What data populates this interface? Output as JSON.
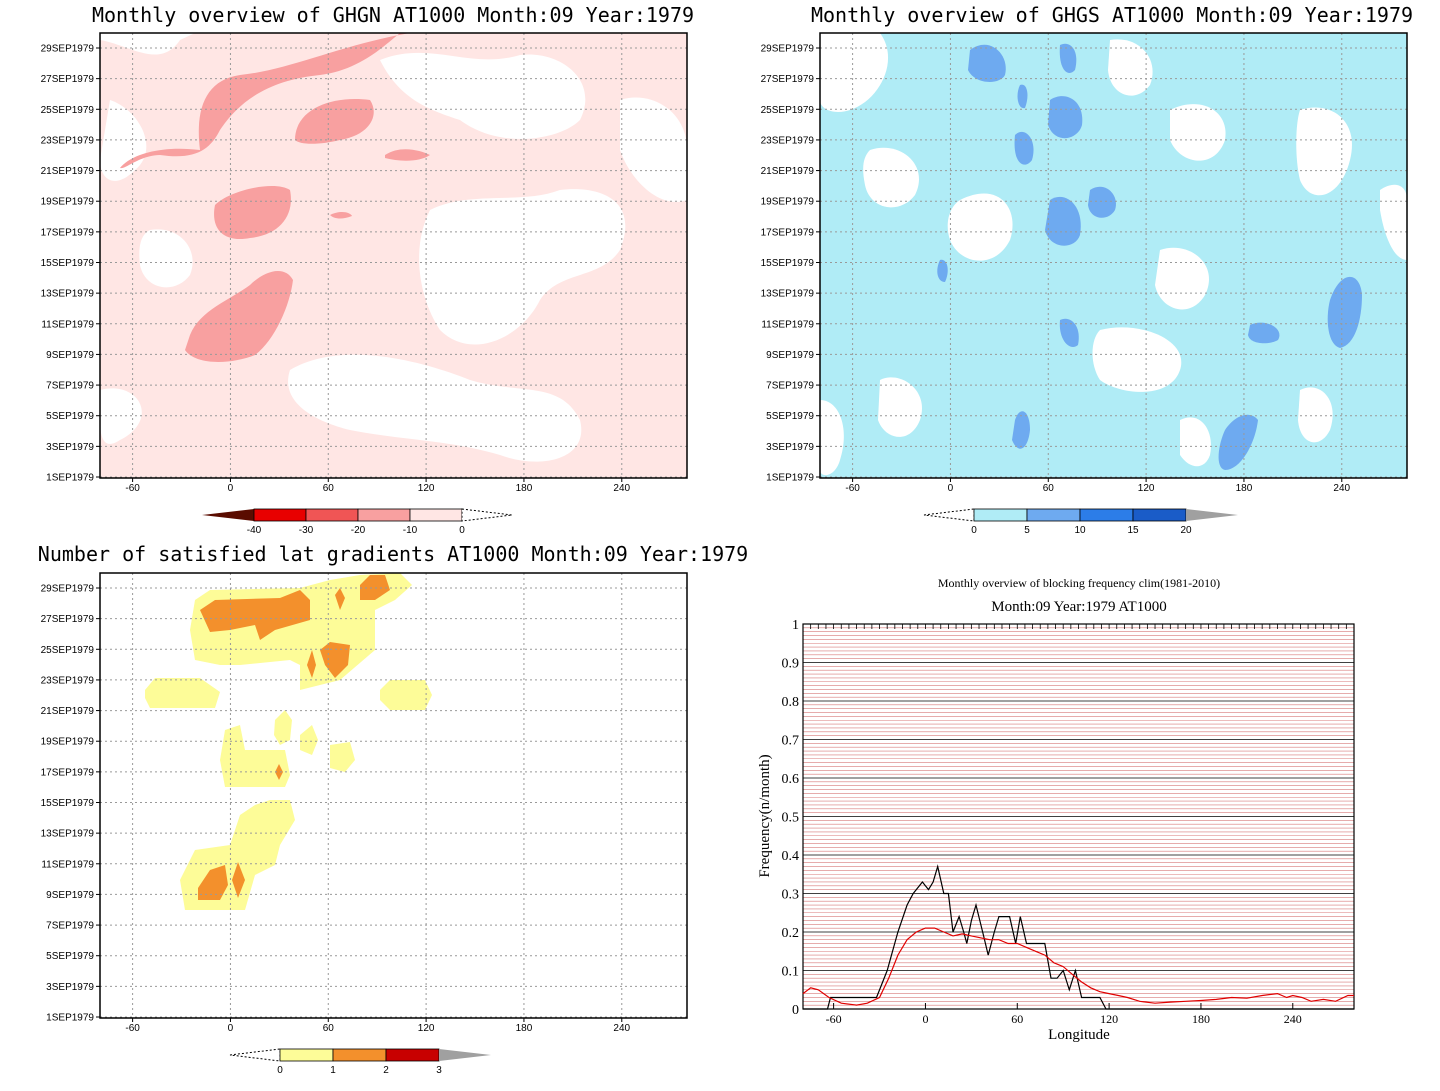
{
  "panels": [
    {
      "id": "ghgn",
      "title": "Monthly overview of GHGN AT1000 Month:09 Year:1979",
      "chart_data": {
        "type": "heatmap",
        "x_ticks": [
          -60,
          0,
          60,
          120,
          180,
          240
        ],
        "y_ticks": [
          "1SEP1979",
          "3SEP1979",
          "5SEP1979",
          "7SEP1979",
          "9SEP1979",
          "11SEP1979",
          "13SEP1979",
          "15SEP1979",
          "17SEP1979",
          "19SEP1979",
          "21SEP1979",
          "23SEP1979",
          "25SEP1979",
          "27SEP1979",
          "29SEP1979"
        ],
        "xlim": [
          -80,
          280
        ],
        "grid": true,
        "colorbar": {
          "labels": [
            "-40",
            "-30",
            "-20",
            "-10",
            "0"
          ],
          "colors": [
            "#5a0c00",
            "#e80000",
            "#f05555",
            "#f8a0a0",
            "#ffe6e4",
            "#ffffff"
          ]
        }
      }
    },
    {
      "id": "ghgs",
      "title": "Monthly overview of GHGS AT1000 Month:09 Year:1979",
      "chart_data": {
        "type": "heatmap",
        "x_ticks": [
          -60,
          0,
          60,
          120,
          180,
          240
        ],
        "y_ticks": [
          "1SEP1979",
          "3SEP1979",
          "5SEP1979",
          "7SEP1979",
          "9SEP1979",
          "11SEP1979",
          "13SEP1979",
          "15SEP1979",
          "17SEP1979",
          "19SEP1979",
          "21SEP1979",
          "23SEP1979",
          "25SEP1979",
          "27SEP1979",
          "29SEP1979"
        ],
        "xlim": [
          -80,
          280
        ],
        "grid": true,
        "colorbar": {
          "labels": [
            "0",
            "5",
            "10",
            "15",
            "20"
          ],
          "colors": [
            "#ffffff",
            "#b0ecf6",
            "#6eaaf0",
            "#2c7de8",
            "#1a5cc8",
            "#a0a0a0"
          ]
        }
      }
    },
    {
      "id": "nsat",
      "title": "Number of satisfied lat gradients AT1000 Month:09 Year:1979",
      "chart_data": {
        "type": "heatmap",
        "x_ticks": [
          -60,
          0,
          60,
          120,
          180,
          240
        ],
        "y_ticks": [
          "1SEP1979",
          "3SEP1979",
          "5SEP1979",
          "7SEP1979",
          "9SEP1979",
          "11SEP1979",
          "13SEP1979",
          "15SEP1979",
          "17SEP1979",
          "19SEP1979",
          "21SEP1979",
          "23SEP1979",
          "25SEP1979",
          "27SEP1979",
          "29SEP1979"
        ],
        "xlim": [
          -80,
          280
        ],
        "grid": true,
        "colorbar": {
          "labels": [
            "0",
            "1",
            "2",
            "3"
          ],
          "colors": [
            "#ffffff",
            "#fdfc98",
            "#f3902c",
            "#c80000",
            "#a0a0a0"
          ]
        }
      }
    }
  ],
  "line_chart": {
    "title_line1": "Monthly overview of blocking frequency clim(1981-2010)",
    "title_line2": "Month:09 Year:1979  AT1000",
    "chart_data": {
      "type": "line",
      "xlabel": "Longitude",
      "ylabel": "Frequency(n/month)",
      "xlim": [
        -80,
        280
      ],
      "ylim": [
        0,
        1
      ],
      "x_ticks": [
        -60,
        0,
        60,
        120,
        180,
        240
      ],
      "y_ticks": [
        "0",
        "0.1",
        "0.2",
        "0.3",
        "0.4",
        "0.5",
        "0.6",
        "0.7",
        "0.8",
        "0.9",
        "1"
      ],
      "series": [
        {
          "color": "#000000",
          "points": [
            [
              -80,
              0
            ],
            [
              -64,
              0
            ],
            [
              -62,
              0.03
            ],
            [
              -55,
              0.03
            ],
            [
              -45,
              0.03
            ],
            [
              -32,
              0.03
            ],
            [
              -25,
              0.1
            ],
            [
              -18,
              0.2
            ],
            [
              -12,
              0.27
            ],
            [
              -8,
              0.3
            ],
            [
              -2,
              0.33
            ],
            [
              2,
              0.31
            ],
            [
              5,
              0.33
            ],
            [
              8,
              0.37
            ],
            [
              12,
              0.3
            ],
            [
              15,
              0.3
            ],
            [
              18,
              0.2
            ],
            [
              22,
              0.24
            ],
            [
              25,
              0.2
            ],
            [
              27,
              0.17
            ],
            [
              30,
              0.23
            ],
            [
              33,
              0.27
            ],
            [
              38,
              0.19
            ],
            [
              41,
              0.14
            ],
            [
              45,
              0.2
            ],
            [
              48,
              0.24
            ],
            [
              55,
              0.24
            ],
            [
              59,
              0.17
            ],
            [
              62,
              0.24
            ],
            [
              66,
              0.17
            ],
            [
              70,
              0.17
            ],
            [
              78,
              0.17
            ],
            [
              82,
              0.08
            ],
            [
              86,
              0.08
            ],
            [
              90,
              0.1
            ],
            [
              94,
              0.05
            ],
            [
              98,
              0.1
            ],
            [
              102,
              0.03
            ],
            [
              110,
              0.03
            ],
            [
              114,
              0.03
            ],
            [
              118,
              0
            ],
            [
              280,
              0
            ]
          ]
        },
        {
          "color": "#e00000",
          "points": [
            [
              -80,
              0.04
            ],
            [
              -75,
              0.055
            ],
            [
              -70,
              0.05
            ],
            [
              -63,
              0.03
            ],
            [
              -55,
              0.015
            ],
            [
              -45,
              0.01
            ],
            [
              -38,
              0.015
            ],
            [
              -30,
              0.03
            ],
            [
              -24,
              0.08
            ],
            [
              -18,
              0.14
            ],
            [
              -12,
              0.18
            ],
            [
              -6,
              0.2
            ],
            [
              0,
              0.21
            ],
            [
              6,
              0.21
            ],
            [
              12,
              0.2
            ],
            [
              18,
              0.19
            ],
            [
              24,
              0.195
            ],
            [
              30,
              0.19
            ],
            [
              36,
              0.185
            ],
            [
              42,
              0.18
            ],
            [
              48,
              0.18
            ],
            [
              54,
              0.17
            ],
            [
              60,
              0.17
            ],
            [
              66,
              0.16
            ],
            [
              72,
              0.15
            ],
            [
              78,
              0.14
            ],
            [
              84,
              0.12
            ],
            [
              90,
              0.11
            ],
            [
              96,
              0.09
            ],
            [
              102,
              0.07
            ],
            [
              108,
              0.055
            ],
            [
              114,
              0.045
            ],
            [
              120,
              0.04
            ],
            [
              126,
              0.035
            ],
            [
              132,
              0.03
            ],
            [
              140,
              0.02
            ],
            [
              150,
              0.015
            ],
            [
              160,
              0.018
            ],
            [
              170,
              0.02
            ],
            [
              180,
              0.022
            ],
            [
              190,
              0.025
            ],
            [
              200,
              0.03
            ],
            [
              210,
              0.028
            ],
            [
              220,
              0.035
            ],
            [
              230,
              0.04
            ],
            [
              236,
              0.03
            ],
            [
              240,
              0.035
            ],
            [
              246,
              0.03
            ],
            [
              252,
              0.02
            ],
            [
              260,
              0.025
            ],
            [
              268,
              0.02
            ],
            [
              276,
              0.035
            ],
            [
              280,
              0.035
            ]
          ]
        }
      ]
    }
  }
}
